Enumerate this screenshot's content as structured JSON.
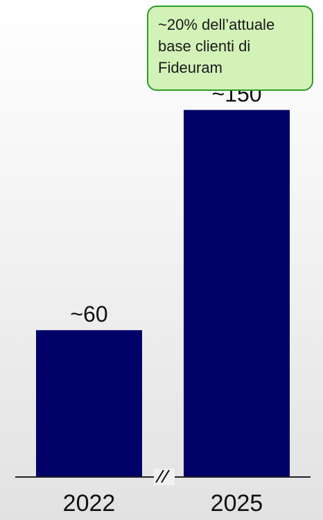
{
  "chart_data": {
    "type": "bar",
    "categories": [
      "2022",
      "2025"
    ],
    "values": [
      60,
      150
    ],
    "value_labels": [
      "~60",
      "~150"
    ],
    "title": "",
    "xlabel": "",
    "ylabel": "",
    "ylim": [
      0,
      170
    ],
    "axis_break": true,
    "grid": false,
    "annotation": {
      "text": "~20% dell’attuale\nbase clienti di\nFideuram",
      "target_category": "2025"
    },
    "colors": {
      "bar": "#000066",
      "callout_fill": "#d3f2b8",
      "callout_border": "#2a9d24",
      "axis": "#222222"
    }
  }
}
